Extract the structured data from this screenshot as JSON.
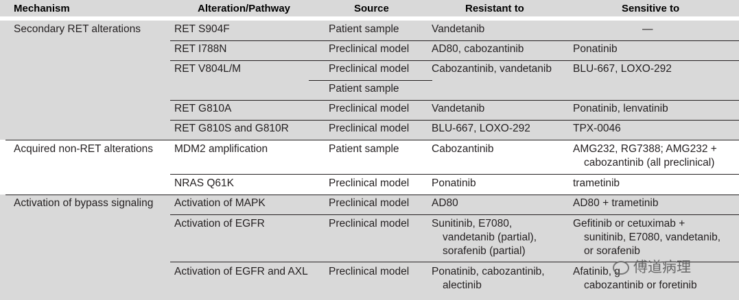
{
  "headers": {
    "mechanism": "Mechanism",
    "alteration": "Alteration/Pathway",
    "source": "Source",
    "resistant": "Resistant to",
    "sensitive": "Sensitive to"
  },
  "groups": [
    {
      "mechanism": "Secondary RET alterations",
      "rows": [
        {
          "alteration": "RET S904F",
          "source": "Patient sample",
          "resistant": "Vandetanib",
          "sensitive": "—"
        },
        {
          "alteration": "RET I788N",
          "source": "Preclinical model",
          "resistant": "AD80, cabozantinib",
          "sensitive": "Ponatinib"
        },
        {
          "alteration": "RET V804L/M",
          "sources": [
            "Preclinical model",
            "Patient sample"
          ],
          "resistant": "Cabozantinib, vandetanib",
          "sensitive": "BLU-667, LOXO-292"
        },
        {
          "alteration": "RET G810A",
          "source": "Preclinical model",
          "resistant": "Vandetanib",
          "sensitive": "Ponatinib, lenvatinib"
        },
        {
          "alteration": "RET G810S and G810R",
          "source": "Preclinical model",
          "resistant": "BLU-667, LOXO-292",
          "sensitive": "TPX-0046"
        }
      ]
    },
    {
      "mechanism": "Acquired non-RET alterations",
      "rows": [
        {
          "alteration": "MDM2 amplification",
          "source": "Patient sample",
          "resistant": "Cabozantinib",
          "sensitive_lines": [
            "AMG232, RG7388; AMG232 +",
            "cabozantinib (all preclinical)"
          ]
        },
        {
          "alteration": "NRAS Q61K",
          "source": "Preclinical model",
          "resistant": "Ponatinib",
          "sensitive": "trametinib"
        }
      ]
    },
    {
      "mechanism": "Activation of bypass signaling",
      "rows": [
        {
          "alteration": "Activation of MAPK",
          "source": "Preclinical model",
          "resistant": "AD80",
          "sensitive": "AD80 + trametinib"
        },
        {
          "alteration": "Activation of EGFR",
          "source": "Preclinical model",
          "resistant_lines": [
            "Sunitinib, E7080,",
            "vandetanib (partial),",
            "sorafenib (partial)"
          ],
          "sensitive_lines": [
            "Gefitinib or cetuximab +",
            "sunitinib, E7080, vandetanib,",
            "or sorafenib"
          ]
        },
        {
          "alteration": "Activation of EGFR and AXL",
          "source": "Preclinical model",
          "resistant_lines": [
            "Ponatinib, cabozantinib,",
            "alectinib"
          ],
          "sensitive_lines": [
            "Afatinib, g",
            "cabozantinib or foretinib"
          ]
        }
      ]
    }
  ],
  "watermark": "傅道病理",
  "colors": {
    "band": "#d9d9d9",
    "text": "#231f20",
    "rule": "#231f20"
  }
}
